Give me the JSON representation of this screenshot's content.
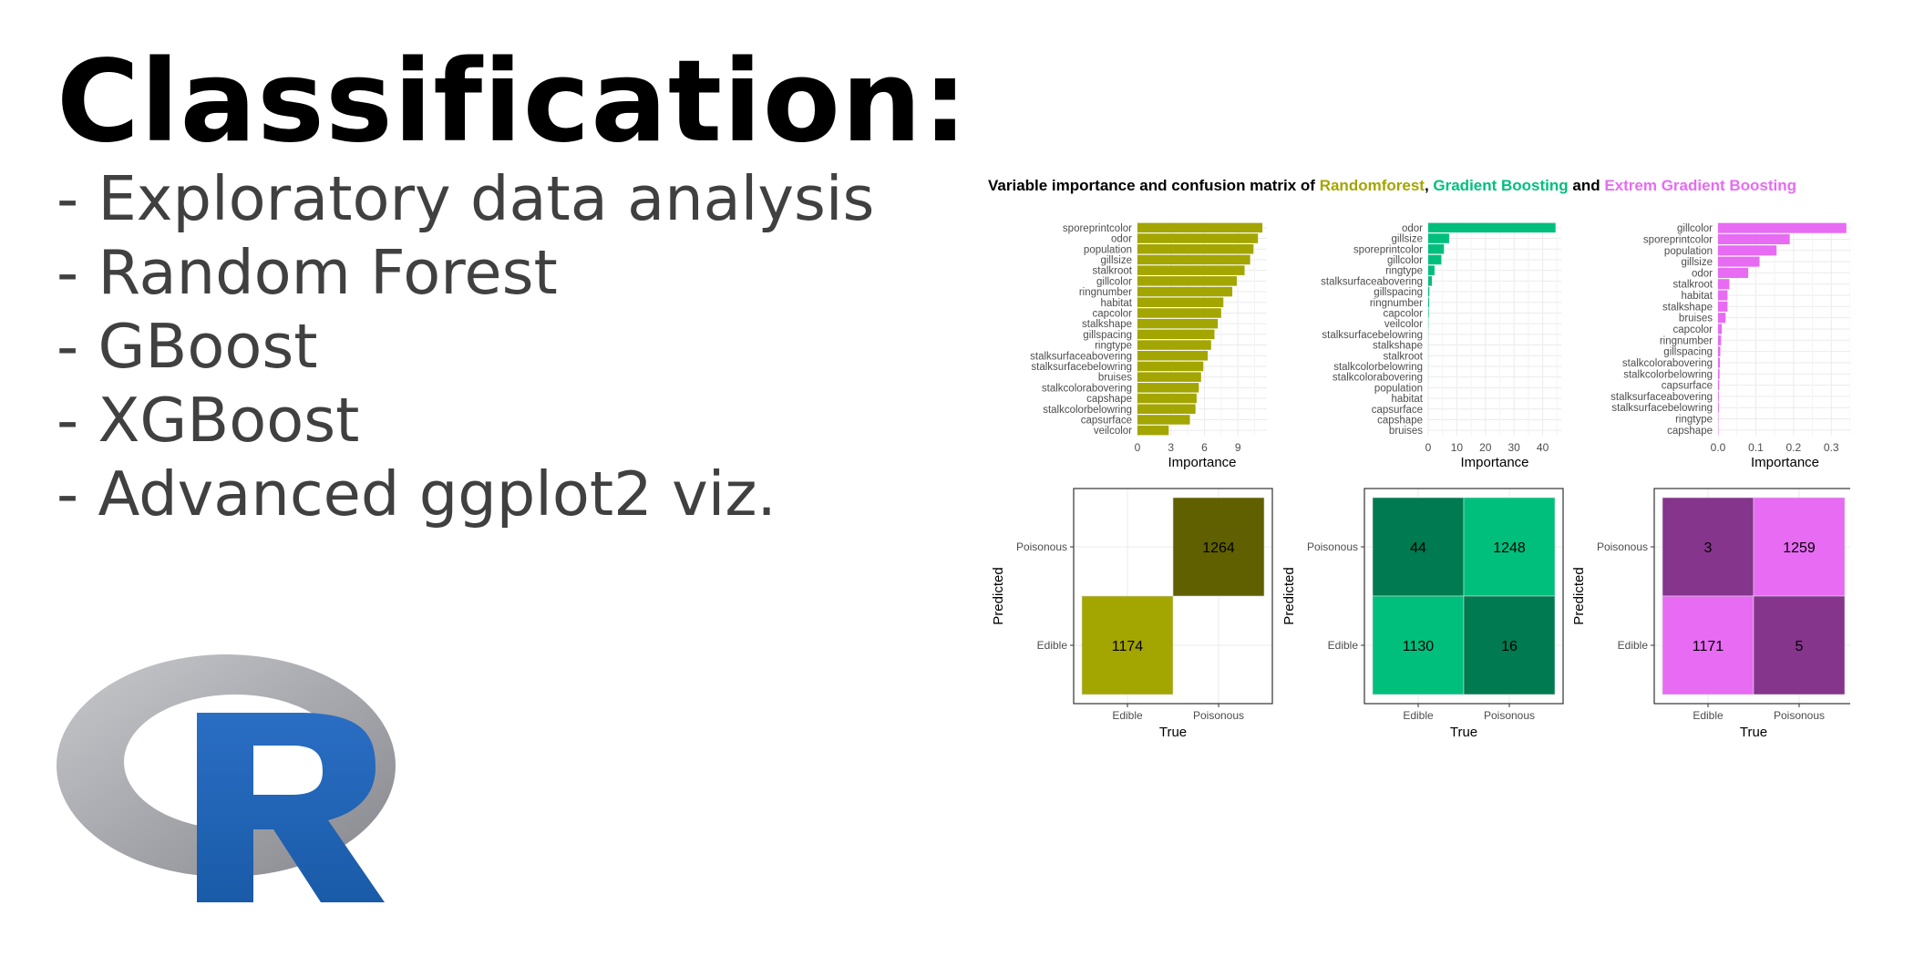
{
  "headline": {
    "title": "Classification:",
    "items": [
      "- Exploratory data analysis",
      "- Random Forest",
      "- GBoost",
      "- XGBoost",
      "- Advanced ggplot2 viz."
    ]
  },
  "logo": {
    "letter": "R",
    "ring_color": "#9b9ca2",
    "letter_color": "#1f65b7"
  },
  "figure": {
    "title_parts": [
      {
        "text": "Variable importance and confusion matrix of ",
        "color": "#000000"
      },
      {
        "text": "Randomforest",
        "color": "#a3a500"
      },
      {
        "text": ", ",
        "color": "#000000"
      },
      {
        "text": "Gradient Boosting",
        "color": "#00bf7d"
      },
      {
        "text": " and ",
        "color": "#000000"
      },
      {
        "text": "Extrem Gradient Boosting",
        "color": "#e76bf3"
      }
    ]
  },
  "chart_data": [
    {
      "type": "bar",
      "orientation": "horizontal",
      "model": "Randomforest",
      "color": "#a3a500",
      "categories": [
        "sporeprintcolor",
        "odor",
        "population",
        "gillsize",
        "stalkroot",
        "gillcolor",
        "ringnumber",
        "habitat",
        "capcolor",
        "stalkshape",
        "gillspacing",
        "ringtype",
        "stalksurfaceabovering",
        "stalksurfacebelowring",
        "bruises",
        "stalkcolorabovering",
        "capshape",
        "stalkcolorbelowring",
        "capsurface",
        "veilcolor"
      ],
      "values": [
        11.2,
        10.8,
        10.4,
        10.1,
        9.6,
        8.9,
        8.5,
        7.7,
        7.5,
        7.2,
        6.9,
        6.6,
        6.3,
        5.9,
        5.7,
        5.5,
        5.3,
        5.2,
        4.7,
        2.8
      ],
      "xlabel": "Importance",
      "xticks": [
        0,
        3,
        6,
        9
      ],
      "xlim": [
        0,
        11.6
      ]
    },
    {
      "type": "bar",
      "orientation": "horizontal",
      "model": "Gradient Boosting",
      "color": "#00bf7d",
      "categories": [
        "odor",
        "gillsize",
        "sporeprintcolor",
        "gillcolor",
        "ringtype",
        "stalksurfaceabovering",
        "gillspacing",
        "ringnumber",
        "capcolor",
        "veilcolor",
        "stalksurfacebelowring",
        "stalkshape",
        "stalkroot",
        "stalkcolorbelowring",
        "stalkcolorabovering",
        "population",
        "habitat",
        "capsurface",
        "capshape",
        "bruises"
      ],
      "values": [
        44.5,
        7.3,
        5.5,
        4.6,
        2.2,
        1.3,
        0.4,
        0.3,
        0.2,
        0.1,
        0.05,
        0.04,
        0.03,
        0.02,
        0.02,
        0.01,
        0.01,
        0.01,
        0,
        0
      ],
      "xlabel": "Importance",
      "xticks": [
        0,
        10,
        20,
        30,
        40
      ],
      "xlim": [
        0,
        46.5
      ]
    },
    {
      "type": "bar",
      "orientation": "horizontal",
      "model": "Extrem Gradient Boosting",
      "color": "#e76bf3",
      "categories": [
        "gillcolor",
        "sporeprintcolor",
        "population",
        "gillsize",
        "odor",
        "stalkroot",
        "habitat",
        "stalkshape",
        "bruises",
        "capcolor",
        "ringnumber",
        "gillspacing",
        "stalkcolorabovering",
        "stalkcolorbelowring",
        "capsurface",
        "stalksurfaceabovering",
        "stalksurfacebelowring",
        "ringtype",
        "capshape"
      ],
      "values": [
        0.34,
        0.19,
        0.155,
        0.11,
        0.08,
        0.03,
        0.025,
        0.025,
        0.02,
        0.01,
        0.008,
        0.006,
        0.005,
        0.004,
        0.003,
        0.002,
        0.002,
        0.001,
        0.001
      ],
      "xlabel": "Importance",
      "xticks": [
        0.0,
        0.1,
        0.2,
        0.3
      ],
      "xticklabels": [
        "0.0",
        "0.1",
        "0.2",
        "0.3"
      ],
      "xlim": [
        0,
        0.355
      ]
    },
    {
      "type": "heatmap",
      "model": "Randomforest",
      "xlabel": "True",
      "ylabel": "Predicted",
      "x": [
        "Edible",
        "Poisonous"
      ],
      "y": [
        "Poisonous",
        "Edible"
      ],
      "cells": [
        {
          "x": "Edible",
          "y": "Poisonous",
          "value": null,
          "color": "#ffffff"
        },
        {
          "x": "Poisonous",
          "y": "Poisonous",
          "value": 1264,
          "color": "#606000"
        },
        {
          "x": "Edible",
          "y": "Edible",
          "value": 1174,
          "color": "#a3a500"
        },
        {
          "x": "Poisonous",
          "y": "Edible",
          "value": null,
          "color": "#ffffff"
        }
      ]
    },
    {
      "type": "heatmap",
      "model": "Gradient Boosting",
      "xlabel": "True",
      "ylabel": "Predicted",
      "x": [
        "Edible",
        "Poisonous"
      ],
      "y": [
        "Poisonous",
        "Edible"
      ],
      "cells": [
        {
          "x": "Edible",
          "y": "Poisonous",
          "value": 44,
          "color": "#007a50"
        },
        {
          "x": "Poisonous",
          "y": "Poisonous",
          "value": 1248,
          "color": "#00bf7d"
        },
        {
          "x": "Edible",
          "y": "Edible",
          "value": 1130,
          "color": "#00bf7d"
        },
        {
          "x": "Poisonous",
          "y": "Edible",
          "value": 16,
          "color": "#007a50"
        }
      ]
    },
    {
      "type": "heatmap",
      "model": "Extrem Gradient Boosting",
      "xlabel": "True",
      "ylabel": "Predicted",
      "x": [
        "Edible",
        "Poisonous"
      ],
      "y": [
        "Poisonous",
        "Edible"
      ],
      "cells": [
        {
          "x": "Edible",
          "y": "Poisonous",
          "value": 3,
          "color": "#85358c"
        },
        {
          "x": "Poisonous",
          "y": "Poisonous",
          "value": 1259,
          "color": "#e76bf3"
        },
        {
          "x": "Edible",
          "y": "Edible",
          "value": 1171,
          "color": "#e76bf3"
        },
        {
          "x": "Poisonous",
          "y": "Edible",
          "value": 5,
          "color": "#85358c"
        }
      ]
    }
  ]
}
